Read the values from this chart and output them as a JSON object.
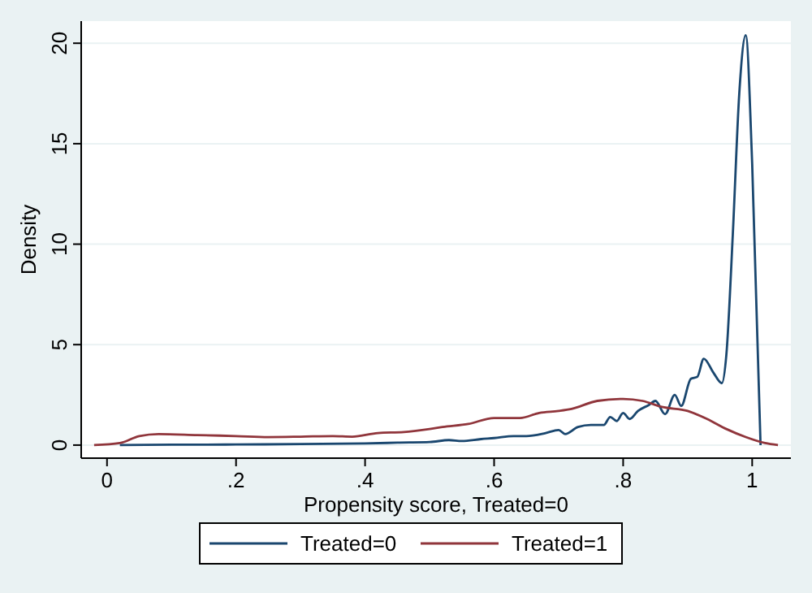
{
  "chart_data": {
    "type": "line",
    "xlabel": "Propensity score, Treated=0",
    "ylabel": "Density",
    "xlim": [
      -0.04,
      1.06
    ],
    "ylim": [
      -0.65,
      21.1
    ],
    "xticks": [
      0,
      {
        "value": 0.2,
        "label": ".2"
      },
      {
        "value": 0.4,
        "label": ".4"
      },
      {
        "value": 0.6,
        "label": ".6"
      },
      {
        "value": 0.8,
        "label": ".8"
      },
      1
    ],
    "yticks": [
      0,
      5,
      10,
      15,
      20
    ],
    "grid": "y",
    "legend": "bottom",
    "series": [
      {
        "name": "Treated=0",
        "color": "#1a476f",
        "x": [
          0.02,
          0.1,
          0.2,
          0.3,
          0.4,
          0.45,
          0.5,
          0.53,
          0.55,
          0.58,
          0.6,
          0.63,
          0.65,
          0.68,
          0.7,
          0.71,
          0.73,
          0.75,
          0.77,
          0.78,
          0.79,
          0.8,
          0.81,
          0.823,
          0.84,
          0.85,
          0.865,
          0.88,
          0.89,
          0.905,
          0.915,
          0.925,
          0.94,
          0.953,
          0.96,
          0.97,
          0.98,
          0.99,
          1.0,
          1.013
        ],
        "values": [
          0,
          0.02,
          0.03,
          0.05,
          0.08,
          0.12,
          0.15,
          0.25,
          0.2,
          0.3,
          0.35,
          0.45,
          0.45,
          0.6,
          0.75,
          0.55,
          0.9,
          1.0,
          1.0,
          1.4,
          1.2,
          1.6,
          1.3,
          1.7,
          2.0,
          2.2,
          1.54,
          2.5,
          1.95,
          3.3,
          3.4,
          4.3,
          3.6,
          3.08,
          4.5,
          10.5,
          17.5,
          20.4,
          14.0,
          0
        ]
      },
      {
        "name": "Treated=1",
        "color": "#90353b",
        "x": [
          -0.02,
          0.02,
          0.05,
          0.08,
          0.14,
          0.2,
          0.25,
          0.3,
          0.35,
          0.38,
          0.42,
          0.46,
          0.5,
          0.52,
          0.56,
          0.6,
          0.64,
          0.67,
          0.7,
          0.72,
          0.76,
          0.8,
          0.83,
          0.86,
          0.9,
          0.93,
          0.96,
          0.99,
          1.02,
          1.04
        ],
        "values": [
          0,
          0.1,
          0.45,
          0.55,
          0.5,
          0.45,
          0.4,
          0.42,
          0.45,
          0.42,
          0.6,
          0.65,
          0.8,
          0.9,
          1.05,
          1.35,
          1.35,
          1.6,
          1.7,
          1.8,
          2.2,
          2.3,
          2.2,
          1.9,
          1.7,
          1.3,
          0.8,
          0.4,
          0.1,
          0
        ]
      }
    ]
  }
}
